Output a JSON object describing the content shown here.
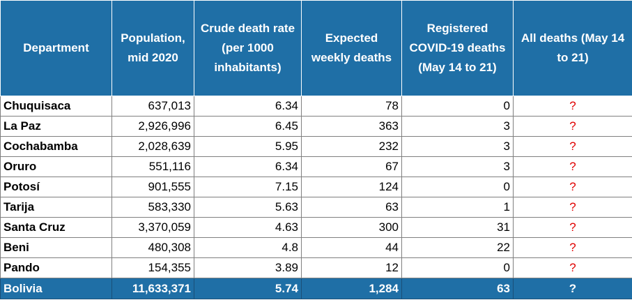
{
  "table": {
    "header": [
      "Department",
      "Population, mid 2020",
      "Crude death rate (per 1000 inhabitants)",
      "Expected weekly deaths",
      "Registered COVID-19 deaths (May 14 to 21)",
      "All deaths (May 14 to 21)"
    ],
    "rows": [
      [
        "Chuquisaca",
        "637,013",
        "6.34",
        "78",
        "0",
        "?"
      ],
      [
        "La Paz",
        "2,926,996",
        "6.45",
        "363",
        "3",
        "?"
      ],
      [
        "Cochabamba",
        "2,028,639",
        "5.95",
        "232",
        "3",
        "?"
      ],
      [
        "Oruro",
        "551,116",
        "6.34",
        "67",
        "3",
        "?"
      ],
      [
        "Potosí",
        "901,555",
        "7.15",
        "124",
        "0",
        "?"
      ],
      [
        "Tarija",
        "583,330",
        "5.63",
        "63",
        "1",
        "?"
      ],
      [
        "Santa Cruz",
        "3,370,059",
        "4.63",
        "300",
        "31",
        "?"
      ],
      [
        "Beni",
        "480,308",
        "4.8",
        "44",
        "22",
        "?"
      ],
      [
        "Pando",
        "154,355",
        "3.89",
        "12",
        "0",
        "?"
      ]
    ],
    "total": [
      "Bolivia",
      "11,633,371",
      "5.74",
      "1,284",
      "63",
      "?"
    ]
  }
}
